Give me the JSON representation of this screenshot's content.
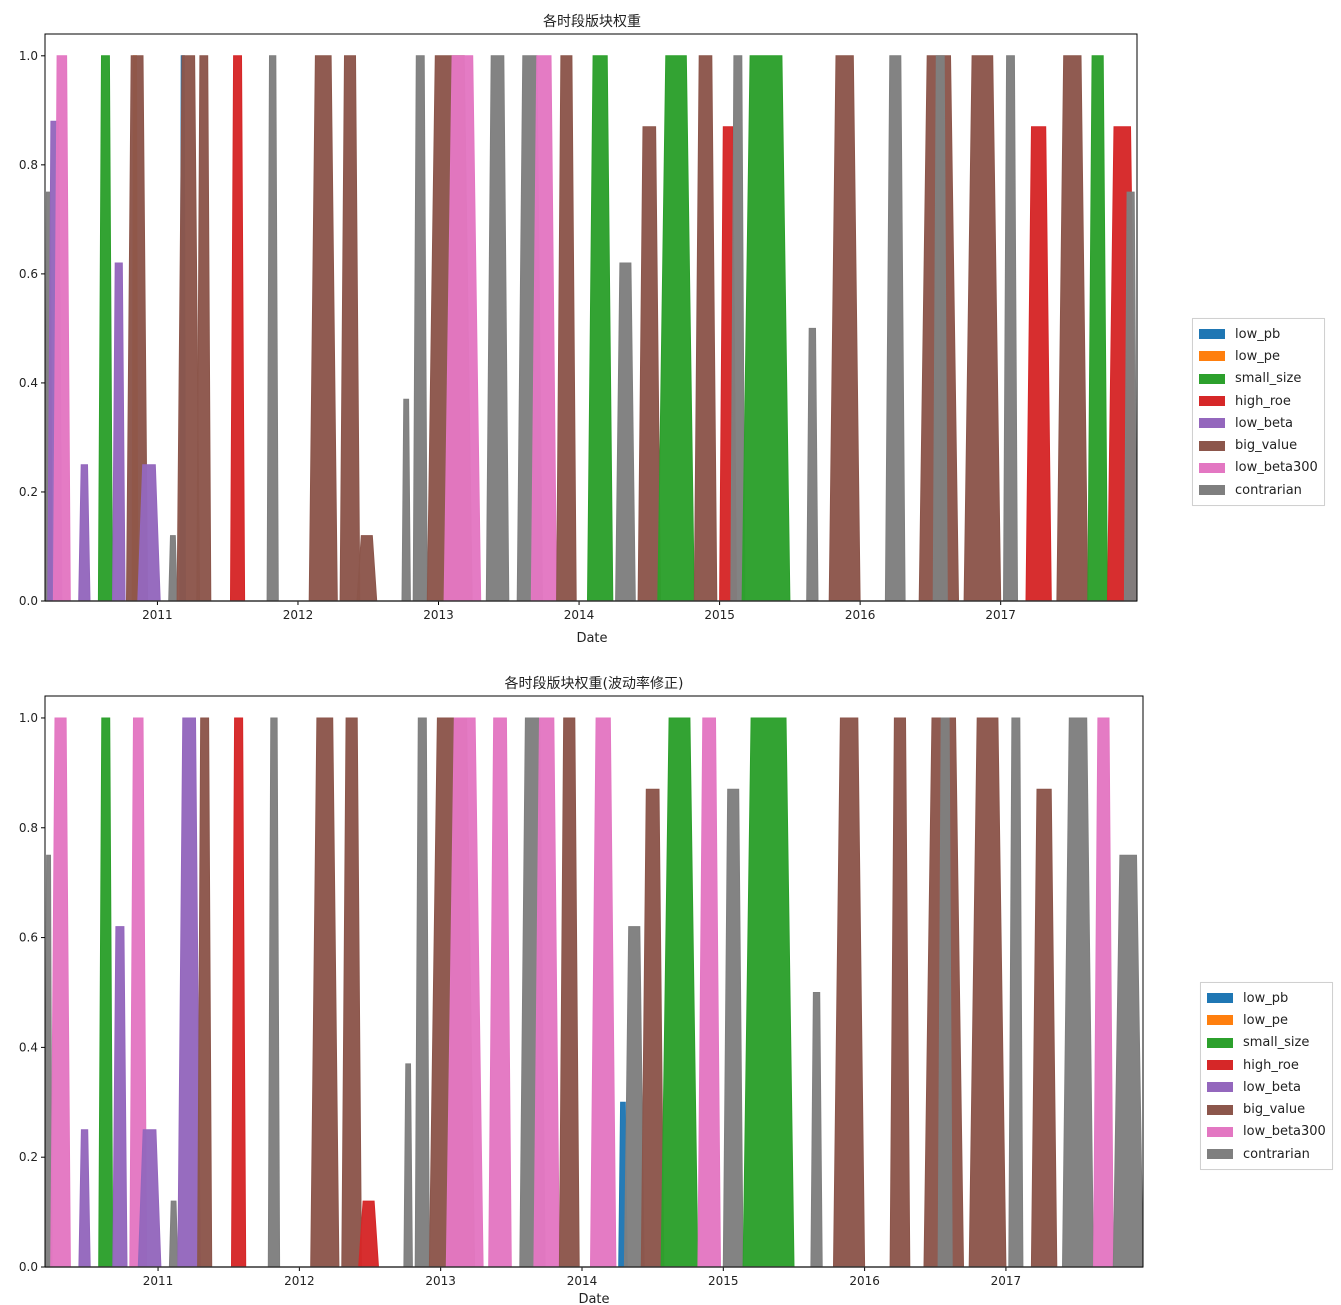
{
  "colors": {
    "low_pb": "#1f77b4",
    "low_pe": "#ff7f0e",
    "small_size": "#2ca02c",
    "high_roe": "#d62728",
    "low_beta": "#9467bd",
    "big_value": "#8c564b",
    "low_beta300": "#e377c2",
    "contrarian": "#7f7f7f"
  },
  "chart_data": [
    {
      "type": "area",
      "stacked": true,
      "title": "各时段版块权重",
      "xlabel": "Date",
      "ylabel": "",
      "xlim": [
        2010.2,
        2017.97
      ],
      "ylim": [
        0,
        1.04
      ],
      "xticks": [
        2011,
        2012,
        2013,
        2014,
        2015,
        2016,
        2017
      ],
      "xtick_labels": [
        "2011",
        "2012",
        "2013",
        "2014",
        "2015",
        "2016",
        "2017"
      ],
      "yticks": [
        0.0,
        0.2,
        0.4,
        0.6,
        0.8,
        1.0
      ],
      "ytick_labels": [
        "0.0",
        "0.2",
        "0.4",
        "0.6",
        "0.8",
        "1.0"
      ],
      "legend": [
        "low_pb",
        "low_pe",
        "small_size",
        "high_roe",
        "low_beta",
        "big_value",
        "low_beta300",
        "contrarian"
      ],
      "legend_position": "right",
      "segments": [
        {
          "series": "contrarian",
          "x0": 2010.2,
          "x1": 2010.25,
          "peak": 0.75
        },
        {
          "series": "low_beta",
          "x0": 2010.22,
          "x1": 2010.32,
          "peak": 0.88
        },
        {
          "series": "low_beta300",
          "x0": 2010.26,
          "x1": 2010.38,
          "peak": 1.0
        },
        {
          "series": "low_beta",
          "x0": 2010.44,
          "x1": 2010.52,
          "peak": 0.25
        },
        {
          "series": "small_size",
          "x0": 2010.58,
          "x1": 2010.68,
          "peak": 1.0
        },
        {
          "series": "low_beta",
          "x0": 2010.68,
          "x1": 2010.77,
          "peak": 0.62
        },
        {
          "series": "low_pe",
          "x0": 2010.82,
          "x1": 2010.86,
          "peak": 1.0
        },
        {
          "series": "big_value",
          "x0": 2010.78,
          "x1": 2010.93,
          "peak": 1.0
        },
        {
          "series": "low_beta",
          "x0": 2010.86,
          "x1": 2011.02,
          "peak": 0.25
        },
        {
          "series": "contrarian",
          "x0": 2011.08,
          "x1": 2011.14,
          "peak": 0.12
        },
        {
          "series": "low_pb",
          "x0": 2011.16,
          "x1": 2011.2,
          "peak": 1.0
        },
        {
          "series": "big_value",
          "x0": 2011.14,
          "x1": 2011.3,
          "peak": 1.0
        },
        {
          "series": "big_value",
          "x0": 2011.28,
          "x1": 2011.38,
          "peak": 1.0
        },
        {
          "series": "high_roe",
          "x0": 2011.52,
          "x1": 2011.62,
          "peak": 1.0
        },
        {
          "series": "contrarian",
          "x0": 2011.78,
          "x1": 2011.86,
          "peak": 1.0
        },
        {
          "series": "big_value",
          "x0": 2012.08,
          "x1": 2012.28,
          "peak": 1.0
        },
        {
          "series": "big_value",
          "x0": 2012.3,
          "x1": 2012.44,
          "peak": 1.0
        },
        {
          "series": "big_value",
          "x0": 2012.42,
          "x1": 2012.56,
          "peak": 0.12
        },
        {
          "series": "contrarian",
          "x0": 2012.74,
          "x1": 2012.8,
          "peak": 0.37
        },
        {
          "series": "contrarian",
          "x0": 2012.82,
          "x1": 2012.92,
          "peak": 1.0
        },
        {
          "series": "big_value",
          "x0": 2012.92,
          "x1": 2013.24,
          "peak": 1.0
        },
        {
          "series": "low_beta300",
          "x0": 2013.04,
          "x1": 2013.3,
          "peak": 1.0
        },
        {
          "series": "contrarian",
          "x0": 2013.34,
          "x1": 2013.5,
          "peak": 1.0
        },
        {
          "series": "contrarian",
          "x0": 2013.56,
          "x1": 2013.74,
          "peak": 1.0
        },
        {
          "series": "low_beta300",
          "x0": 2013.66,
          "x1": 2013.84,
          "peak": 1.0
        },
        {
          "series": "big_value",
          "x0": 2013.84,
          "x1": 2013.98,
          "peak": 1.0
        },
        {
          "series": "small_size",
          "x0": 2014.06,
          "x1": 2014.24,
          "peak": 1.0
        },
        {
          "series": "contrarian",
          "x0": 2014.26,
          "x1": 2014.4,
          "peak": 0.62
        },
        {
          "series": "big_value",
          "x0": 2014.42,
          "x1": 2014.58,
          "peak": 0.87
        },
        {
          "series": "small_size",
          "x0": 2014.56,
          "x1": 2014.82,
          "peak": 1.0
        },
        {
          "series": "big_value",
          "x0": 2014.82,
          "x1": 2014.98,
          "peak": 1.0
        },
        {
          "series": "high_roe",
          "x0": 2015.0,
          "x1": 2015.12,
          "peak": 0.87
        },
        {
          "series": "contrarian",
          "x0": 2015.08,
          "x1": 2015.18,
          "peak": 1.0
        },
        {
          "series": "small_size",
          "x0": 2015.16,
          "x1": 2015.5,
          "peak": 1.0
        },
        {
          "series": "contrarian",
          "x0": 2015.62,
          "x1": 2015.7,
          "peak": 0.5
        },
        {
          "series": "big_value",
          "x0": 2015.78,
          "x1": 2016.0,
          "peak": 1.0
        },
        {
          "series": "contrarian",
          "x0": 2016.18,
          "x1": 2016.32,
          "peak": 1.0
        },
        {
          "series": "big_value",
          "x0": 2016.42,
          "x1": 2016.7,
          "peak": 1.0
        },
        {
          "series": "contrarian",
          "x0": 2016.52,
          "x1": 2016.62,
          "peak": 1.0
        },
        {
          "series": "big_value",
          "x0": 2016.74,
          "x1": 2017.0,
          "peak": 1.0
        },
        {
          "series": "contrarian",
          "x0": 2017.02,
          "x1": 2017.12,
          "peak": 1.0
        },
        {
          "series": "high_roe",
          "x0": 2017.18,
          "x1": 2017.36,
          "peak": 0.87
        },
        {
          "series": "big_value",
          "x0": 2017.4,
          "x1": 2017.62,
          "peak": 1.0
        },
        {
          "series": "small_size",
          "x0": 2017.62,
          "x1": 2017.76,
          "peak": 1.0
        },
        {
          "series": "high_roe",
          "x0": 2017.76,
          "x1": 2017.97,
          "peak": 0.87
        },
        {
          "series": "contrarian",
          "x0": 2017.88,
          "x1": 2017.97,
          "peak": 0.75
        }
      ]
    },
    {
      "type": "area",
      "stacked": true,
      "title": "各时段版块权重(波动率修正)",
      "xlabel": "Date",
      "ylabel": "",
      "xlim": [
        2010.2,
        2017.97
      ],
      "ylim": [
        0,
        1.04
      ],
      "xticks": [
        2011,
        2012,
        2013,
        2014,
        2015,
        2016,
        2017
      ],
      "xtick_labels": [
        "2011",
        "2012",
        "2013",
        "2014",
        "2015",
        "2016",
        "2017"
      ],
      "yticks": [
        0.0,
        0.2,
        0.4,
        0.6,
        0.8,
        1.0
      ],
      "ytick_labels": [
        "0.0",
        "0.2",
        "0.4",
        "0.6",
        "0.8",
        "1.0"
      ],
      "legend": [
        "low_pb",
        "low_pe",
        "small_size",
        "high_roe",
        "low_beta",
        "big_value",
        "low_beta300",
        "contrarian"
      ],
      "legend_position": "right",
      "segments": [
        {
          "series": "contrarian",
          "x0": 2010.2,
          "x1": 2010.25,
          "peak": 0.75
        },
        {
          "series": "low_beta300",
          "x0": 2010.24,
          "x1": 2010.38,
          "peak": 1.0
        },
        {
          "series": "low_beta",
          "x0": 2010.44,
          "x1": 2010.52,
          "peak": 0.25
        },
        {
          "series": "small_size",
          "x0": 2010.58,
          "x1": 2010.68,
          "peak": 1.0
        },
        {
          "series": "low_beta",
          "x0": 2010.68,
          "x1": 2010.78,
          "peak": 0.62
        },
        {
          "series": "low_beta300",
          "x0": 2010.8,
          "x1": 2010.92,
          "peak": 1.0
        },
        {
          "series": "low_beta",
          "x0": 2010.86,
          "x1": 2011.02,
          "peak": 0.25
        },
        {
          "series": "contrarian",
          "x0": 2011.08,
          "x1": 2011.14,
          "peak": 0.12
        },
        {
          "series": "low_beta",
          "x0": 2011.14,
          "x1": 2011.3,
          "peak": 1.0
        },
        {
          "series": "big_value",
          "x0": 2011.28,
          "x1": 2011.38,
          "peak": 1.0
        },
        {
          "series": "high_roe",
          "x0": 2011.52,
          "x1": 2011.62,
          "peak": 1.0
        },
        {
          "series": "contrarian",
          "x0": 2011.78,
          "x1": 2011.86,
          "peak": 1.0
        },
        {
          "series": "big_value",
          "x0": 2012.08,
          "x1": 2012.28,
          "peak": 1.0
        },
        {
          "series": "big_value",
          "x0": 2012.3,
          "x1": 2012.44,
          "peak": 1.0
        },
        {
          "series": "high_roe",
          "x0": 2012.42,
          "x1": 2012.56,
          "peak": 0.12
        },
        {
          "series": "contrarian",
          "x0": 2012.74,
          "x1": 2012.8,
          "peak": 0.37
        },
        {
          "series": "contrarian",
          "x0": 2012.82,
          "x1": 2012.92,
          "peak": 1.0
        },
        {
          "series": "big_value",
          "x0": 2012.92,
          "x1": 2013.24,
          "peak": 1.0
        },
        {
          "series": "low_beta300",
          "x0": 2013.04,
          "x1": 2013.3,
          "peak": 1.0
        },
        {
          "series": "low_beta300",
          "x0": 2013.34,
          "x1": 2013.5,
          "peak": 1.0
        },
        {
          "series": "contrarian",
          "x0": 2013.56,
          "x1": 2013.74,
          "peak": 1.0
        },
        {
          "series": "low_beta300",
          "x0": 2013.66,
          "x1": 2013.84,
          "peak": 1.0
        },
        {
          "series": "big_value",
          "x0": 2013.84,
          "x1": 2013.98,
          "peak": 1.0
        },
        {
          "series": "low_beta300",
          "x0": 2014.06,
          "x1": 2014.24,
          "peak": 1.0
        },
        {
          "series": "low_pb",
          "x0": 2014.26,
          "x1": 2014.32,
          "peak": 0.3
        },
        {
          "series": "contrarian",
          "x0": 2014.3,
          "x1": 2014.44,
          "peak": 0.62
        },
        {
          "series": "big_value",
          "x0": 2014.42,
          "x1": 2014.58,
          "peak": 0.87
        },
        {
          "series": "small_size",
          "x0": 2014.56,
          "x1": 2014.82,
          "peak": 1.0
        },
        {
          "series": "low_beta300",
          "x0": 2014.82,
          "x1": 2014.98,
          "peak": 1.0
        },
        {
          "series": "contrarian",
          "x0": 2015.0,
          "x1": 2015.14,
          "peak": 0.87
        },
        {
          "series": "small_size",
          "x0": 2015.14,
          "x1": 2015.5,
          "peak": 1.0
        },
        {
          "series": "contrarian",
          "x0": 2015.62,
          "x1": 2015.7,
          "peak": 0.5
        },
        {
          "series": "big_value",
          "x0": 2015.78,
          "x1": 2016.0,
          "peak": 1.0
        },
        {
          "series": "big_value",
          "x0": 2016.18,
          "x1": 2016.32,
          "peak": 1.0
        },
        {
          "series": "big_value",
          "x0": 2016.42,
          "x1": 2016.7,
          "peak": 1.0
        },
        {
          "series": "contrarian",
          "x0": 2016.52,
          "x1": 2016.62,
          "peak": 1.0
        },
        {
          "series": "big_value",
          "x0": 2016.74,
          "x1": 2017.0,
          "peak": 1.0
        },
        {
          "series": "contrarian",
          "x0": 2017.02,
          "x1": 2017.12,
          "peak": 1.0
        },
        {
          "series": "big_value",
          "x0": 2017.18,
          "x1": 2017.36,
          "peak": 0.87
        },
        {
          "series": "contrarian",
          "x0": 2017.4,
          "x1": 2017.62,
          "peak": 1.0
        },
        {
          "series": "low_beta300",
          "x0": 2017.62,
          "x1": 2017.76,
          "peak": 1.0
        },
        {
          "series": "contrarian",
          "x0": 2017.76,
          "x1": 2017.97,
          "peak": 0.75
        }
      ]
    }
  ]
}
